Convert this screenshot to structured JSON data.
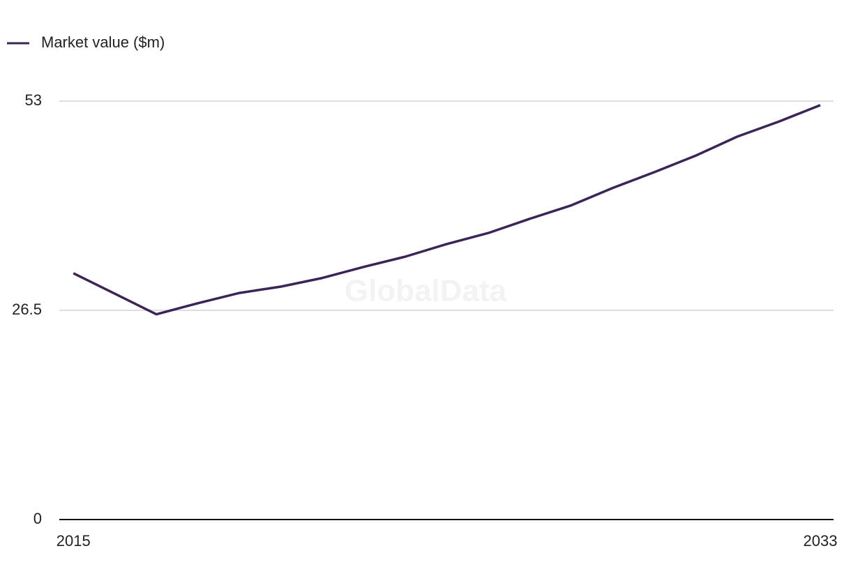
{
  "chart_data": {
    "type": "line",
    "watermark": "GlobalData",
    "x": [
      2015,
      2016,
      2017,
      2018,
      2019,
      2020,
      2021,
      2022,
      2023,
      2024,
      2025,
      2026,
      2027,
      2028,
      2029,
      2030,
      2031,
      2032,
      2033
    ],
    "series": [
      {
        "name": "Market value ($m)",
        "color": "#3b2456",
        "values": [
          31.2,
          28.6,
          26.0,
          27.4,
          28.7,
          29.5,
          30.6,
          32.0,
          33.3,
          34.9,
          36.3,
          38.1,
          39.8,
          42.0,
          44.0,
          46.1,
          48.5,
          50.4,
          52.5
        ]
      }
    ],
    "xlim": [
      2014.66,
      2033.32
    ],
    "xticks": [
      2015,
      2033
    ],
    "ylim": [
      0,
      53
    ],
    "yticks": [
      0,
      26.5,
      53
    ],
    "grid": true
  }
}
